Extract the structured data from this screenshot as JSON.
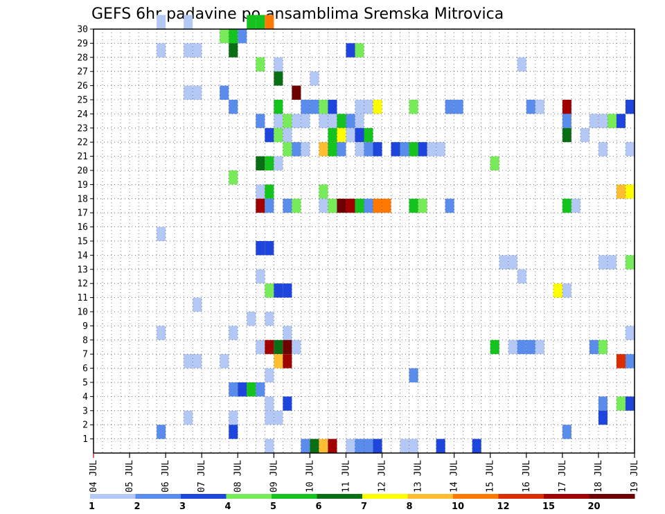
{
  "chart_data": {
    "type": "heatmap",
    "title": "GEFS 6hr padavine po ansamblima Sremska Mitrovica",
    "x_tick_labels": [
      "04 JUL",
      "05 JUL",
      "06 JUL",
      "07 JUL",
      "08 JUL",
      "09 JUL",
      "10 JUL",
      "11 JUL",
      "12 JUL",
      "13 JUL",
      "14 JUL",
      "15 JUL",
      "16 JUL",
      "17 JUL",
      "18 JUL",
      "19 JUL"
    ],
    "y_tick_labels": [
      "1",
      "2",
      "3",
      "4",
      "5",
      "6",
      "7",
      "8",
      "9",
      "10",
      "11",
      "12",
      "13",
      "14",
      "15",
      "16",
      "17",
      "18",
      "19",
      "20",
      "21",
      "22",
      "23",
      "24",
      "25",
      "26",
      "27",
      "28",
      "29",
      "30"
    ],
    "x_unit": "6-hour step starting 04 JUL 00z",
    "y_unit": "ensemble member",
    "grid": "dotted",
    "colorbar_labels": [
      "1",
      "2",
      "3",
      "4",
      "5",
      "6",
      "7",
      "8",
      "10",
      "12",
      "15",
      "20"
    ],
    "colorbar_colors": [
      "#b4c8f5",
      "#5a8ceb",
      "#1e46dc",
      "#78eb5a",
      "#14c31e",
      "#0a6e14",
      "#ffff00",
      "#ffbe32",
      "#ff7800",
      "#dc2d00",
      "#a00000",
      "#6e0000"
    ],
    "cells": [
      {
        "x": 7,
        "y": 30,
        "v": 1
      },
      {
        "x": 10,
        "y": 30,
        "v": 1
      },
      {
        "x": 17,
        "y": 30,
        "v": 5
      },
      {
        "x": 18,
        "y": 30,
        "v": 5
      },
      {
        "x": 19,
        "y": 30,
        "v": 10
      },
      {
        "x": 14,
        "y": 29,
        "v": 4
      },
      {
        "x": 15,
        "y": 29,
        "v": 5
      },
      {
        "x": 16,
        "y": 29,
        "v": 2
      },
      {
        "x": 7,
        "y": 28,
        "v": 1
      },
      {
        "x": 10,
        "y": 28,
        "v": 1
      },
      {
        "x": 11,
        "y": 28,
        "v": 1
      },
      {
        "x": 15,
        "y": 28,
        "v": 6
      },
      {
        "x": 28,
        "y": 28,
        "v": 3
      },
      {
        "x": 29,
        "y": 28,
        "v": 4
      },
      {
        "x": 18,
        "y": 27,
        "v": 4
      },
      {
        "x": 20,
        "y": 27,
        "v": 1
      },
      {
        "x": 47,
        "y": 27,
        "v": 1
      },
      {
        "x": 20,
        "y": 26,
        "v": 6
      },
      {
        "x": 24,
        "y": 26,
        "v": 1
      },
      {
        "x": 10,
        "y": 25,
        "v": 1
      },
      {
        "x": 11,
        "y": 25,
        "v": 1
      },
      {
        "x": 14,
        "y": 25,
        "v": 2
      },
      {
        "x": 22,
        "y": 25,
        "v": 20
      },
      {
        "x": 15,
        "y": 24,
        "v": 2
      },
      {
        "x": 20,
        "y": 24,
        "v": 5
      },
      {
        "x": 23,
        "y": 24,
        "v": 2
      },
      {
        "x": 24,
        "y": 24,
        "v": 2
      },
      {
        "x": 25,
        "y": 24,
        "v": 4
      },
      {
        "x": 26,
        "y": 24,
        "v": 3
      },
      {
        "x": 29,
        "y": 24,
        "v": 1
      },
      {
        "x": 30,
        "y": 24,
        "v": 1
      },
      {
        "x": 31,
        "y": 24,
        "v": 7
      },
      {
        "x": 35,
        "y": 24,
        "v": 4
      },
      {
        "x": 39,
        "y": 24,
        "v": 2
      },
      {
        "x": 40,
        "y": 24,
        "v": 2
      },
      {
        "x": 48,
        "y": 24,
        "v": 2
      },
      {
        "x": 49,
        "y": 24,
        "v": 1
      },
      {
        "x": 52,
        "y": 24,
        "v": 15
      },
      {
        "x": 59,
        "y": 24,
        "v": 3
      },
      {
        "x": 18,
        "y": 23,
        "v": 2
      },
      {
        "x": 20,
        "y": 23,
        "v": 1
      },
      {
        "x": 21,
        "y": 23,
        "v": 4
      },
      {
        "x": 22,
        "y": 23,
        "v": 1
      },
      {
        "x": 23,
        "y": 23,
        "v": 1
      },
      {
        "x": 25,
        "y": 23,
        "v": 1
      },
      {
        "x": 26,
        "y": 23,
        "v": 1
      },
      {
        "x": 27,
        "y": 23,
        "v": 5
      },
      {
        "x": 28,
        "y": 23,
        "v": 2
      },
      {
        "x": 29,
        "y": 23,
        "v": 1
      },
      {
        "x": 52,
        "y": 23,
        "v": 2
      },
      {
        "x": 55,
        "y": 23,
        "v": 1
      },
      {
        "x": 56,
        "y": 23,
        "v": 1
      },
      {
        "x": 57,
        "y": 23,
        "v": 4
      },
      {
        "x": 58,
        "y": 23,
        "v": 3
      },
      {
        "x": 19,
        "y": 22,
        "v": 3
      },
      {
        "x": 20,
        "y": 22,
        "v": 4
      },
      {
        "x": 21,
        "y": 22,
        "v": 1
      },
      {
        "x": 26,
        "y": 22,
        "v": 5
      },
      {
        "x": 27,
        "y": 22,
        "v": 7
      },
      {
        "x": 28,
        "y": 22,
        "v": 1
      },
      {
        "x": 29,
        "y": 22,
        "v": 3
      },
      {
        "x": 30,
        "y": 22,
        "v": 5
      },
      {
        "x": 52,
        "y": 22,
        "v": 6
      },
      {
        "x": 54,
        "y": 22,
        "v": 1
      },
      {
        "x": 21,
        "y": 21,
        "v": 4
      },
      {
        "x": 22,
        "y": 21,
        "v": 2
      },
      {
        "x": 23,
        "y": 21,
        "v": 1
      },
      {
        "x": 25,
        "y": 21,
        "v": 8
      },
      {
        "x": 26,
        "y": 21,
        "v": 5
      },
      {
        "x": 27,
        "y": 21,
        "v": 2
      },
      {
        "x": 29,
        "y": 21,
        "v": 1
      },
      {
        "x": 30,
        "y": 21,
        "v": 2
      },
      {
        "x": 31,
        "y": 21,
        "v": 3
      },
      {
        "x": 33,
        "y": 21,
        "v": 3
      },
      {
        "x": 34,
        "y": 21,
        "v": 2
      },
      {
        "x": 35,
        "y": 21,
        "v": 5
      },
      {
        "x": 36,
        "y": 21,
        "v": 3
      },
      {
        "x": 37,
        "y": 21,
        "v": 1
      },
      {
        "x": 38,
        "y": 21,
        "v": 1
      },
      {
        "x": 56,
        "y": 21,
        "v": 1
      },
      {
        "x": 59,
        "y": 21,
        "v": 1
      },
      {
        "x": 18,
        "y": 20,
        "v": 6
      },
      {
        "x": 19,
        "y": 20,
        "v": 5
      },
      {
        "x": 20,
        "y": 20,
        "v": 1
      },
      {
        "x": 44,
        "y": 20,
        "v": 4
      },
      {
        "x": 15,
        "y": 19,
        "v": 4
      },
      {
        "x": 18,
        "y": 18,
        "v": 1
      },
      {
        "x": 19,
        "y": 18,
        "v": 5
      },
      {
        "x": 25,
        "y": 18,
        "v": 4
      },
      {
        "x": 58,
        "y": 18,
        "v": 8
      },
      {
        "x": 59,
        "y": 18,
        "v": 7
      },
      {
        "x": 18,
        "y": 17,
        "v": 15
      },
      {
        "x": 19,
        "y": 17,
        "v": 2
      },
      {
        "x": 21,
        "y": 17,
        "v": 2
      },
      {
        "x": 22,
        "y": 17,
        "v": 4
      },
      {
        "x": 25,
        "y": 17,
        "v": 1
      },
      {
        "x": 26,
        "y": 17,
        "v": 4
      },
      {
        "x": 27,
        "y": 17,
        "v": 20
      },
      {
        "x": 28,
        "y": 17,
        "v": 15
      },
      {
        "x": 29,
        "y": 17,
        "v": 5
      },
      {
        "x": 30,
        "y": 17,
        "v": 2
      },
      {
        "x": 31,
        "y": 17,
        "v": 10
      },
      {
        "x": 32,
        "y": 17,
        "v": 10
      },
      {
        "x": 35,
        "y": 17,
        "v": 5
      },
      {
        "x": 36,
        "y": 17,
        "v": 4
      },
      {
        "x": 39,
        "y": 17,
        "v": 2
      },
      {
        "x": 52,
        "y": 17,
        "v": 5
      },
      {
        "x": 53,
        "y": 17,
        "v": 1
      },
      {
        "x": 7,
        "y": 15,
        "v": 1
      },
      {
        "x": 18,
        "y": 14,
        "v": 3
      },
      {
        "x": 19,
        "y": 14,
        "v": 3
      },
      {
        "x": 45,
        "y": 13,
        "v": 1
      },
      {
        "x": 46,
        "y": 13,
        "v": 1
      },
      {
        "x": 56,
        "y": 13,
        "v": 1
      },
      {
        "x": 57,
        "y": 13,
        "v": 1
      },
      {
        "x": 59,
        "y": 13,
        "v": 4
      },
      {
        "x": 18,
        "y": 12,
        "v": 1
      },
      {
        "x": 47,
        "y": 12,
        "v": 1
      },
      {
        "x": 19,
        "y": 11,
        "v": 4
      },
      {
        "x": 20,
        "y": 11,
        "v": 3
      },
      {
        "x": 21,
        "y": 11,
        "v": 3
      },
      {
        "x": 51,
        "y": 11,
        "v": 7
      },
      {
        "x": 52,
        "y": 11,
        "v": 1
      },
      {
        "x": 11,
        "y": 10,
        "v": 1
      },
      {
        "x": 17,
        "y": 9,
        "v": 1
      },
      {
        "x": 19,
        "y": 9,
        "v": 1
      },
      {
        "x": 7,
        "y": 8,
        "v": 1
      },
      {
        "x": 15,
        "y": 8,
        "v": 1
      },
      {
        "x": 21,
        "y": 8,
        "v": 1
      },
      {
        "x": 59,
        "y": 8,
        "v": 1
      },
      {
        "x": 18,
        "y": 7,
        "v": 1
      },
      {
        "x": 19,
        "y": 7,
        "v": 15
      },
      {
        "x": 20,
        "y": 7,
        "v": 6
      },
      {
        "x": 21,
        "y": 7,
        "v": 20
      },
      {
        "x": 22,
        "y": 7,
        "v": 1
      },
      {
        "x": 44,
        "y": 7,
        "v": 5
      },
      {
        "x": 46,
        "y": 7,
        "v": 1
      },
      {
        "x": 47,
        "y": 7,
        "v": 2
      },
      {
        "x": 48,
        "y": 7,
        "v": 2
      },
      {
        "x": 49,
        "y": 7,
        "v": 1
      },
      {
        "x": 55,
        "y": 7,
        "v": 2
      },
      {
        "x": 56,
        "y": 7,
        "v": 4
      },
      {
        "x": 10,
        "y": 6,
        "v": 1
      },
      {
        "x": 11,
        "y": 6,
        "v": 1
      },
      {
        "x": 14,
        "y": 6,
        "v": 1
      },
      {
        "x": 20,
        "y": 6,
        "v": 8
      },
      {
        "x": 21,
        "y": 6,
        "v": 15
      },
      {
        "x": 58,
        "y": 6,
        "v": 12
      },
      {
        "x": 59,
        "y": 6,
        "v": 2
      },
      {
        "x": 19,
        "y": 5,
        "v": 1
      },
      {
        "x": 35,
        "y": 5,
        "v": 2
      },
      {
        "x": 15,
        "y": 4,
        "v": 2
      },
      {
        "x": 16,
        "y": 4,
        "v": 3
      },
      {
        "x": 17,
        "y": 4,
        "v": 5
      },
      {
        "x": 18,
        "y": 4,
        "v": 2
      },
      {
        "x": 19,
        "y": 3,
        "v": 1
      },
      {
        "x": 21,
        "y": 3,
        "v": 3
      },
      {
        "x": 56,
        "y": 3,
        "v": 2
      },
      {
        "x": 58,
        "y": 3,
        "v": 4
      },
      {
        "x": 59,
        "y": 3,
        "v": 3
      },
      {
        "x": 10,
        "y": 2,
        "v": 1
      },
      {
        "x": 15,
        "y": 2,
        "v": 1
      },
      {
        "x": 19,
        "y": 2,
        "v": 1
      },
      {
        "x": 20,
        "y": 2,
        "v": 1
      },
      {
        "x": 56,
        "y": 2,
        "v": 3
      },
      {
        "x": 7,
        "y": 1,
        "v": 2
      },
      {
        "x": 15,
        "y": 1,
        "v": 3
      },
      {
        "x": 52,
        "y": 1,
        "v": 2
      },
      {
        "x": 19,
        "y": 0,
        "v": 1
      },
      {
        "x": 23,
        "y": 0,
        "v": 2
      },
      {
        "x": 24,
        "y": 0,
        "v": 6
      },
      {
        "x": 25,
        "y": 0,
        "v": 8
      },
      {
        "x": 26,
        "y": 0,
        "v": 15
      },
      {
        "x": 28,
        "y": 0,
        "v": 1
      },
      {
        "x": 29,
        "y": 0,
        "v": 2
      },
      {
        "x": 30,
        "y": 0,
        "v": 2
      },
      {
        "x": 31,
        "y": 0,
        "v": 3
      },
      {
        "x": 34,
        "y": 0,
        "v": 1
      },
      {
        "x": 35,
        "y": 0,
        "v": 1
      },
      {
        "x": 38,
        "y": 0,
        "v": 3
      },
      {
        "x": 42,
        "y": 0,
        "v": 3
      }
    ]
  }
}
